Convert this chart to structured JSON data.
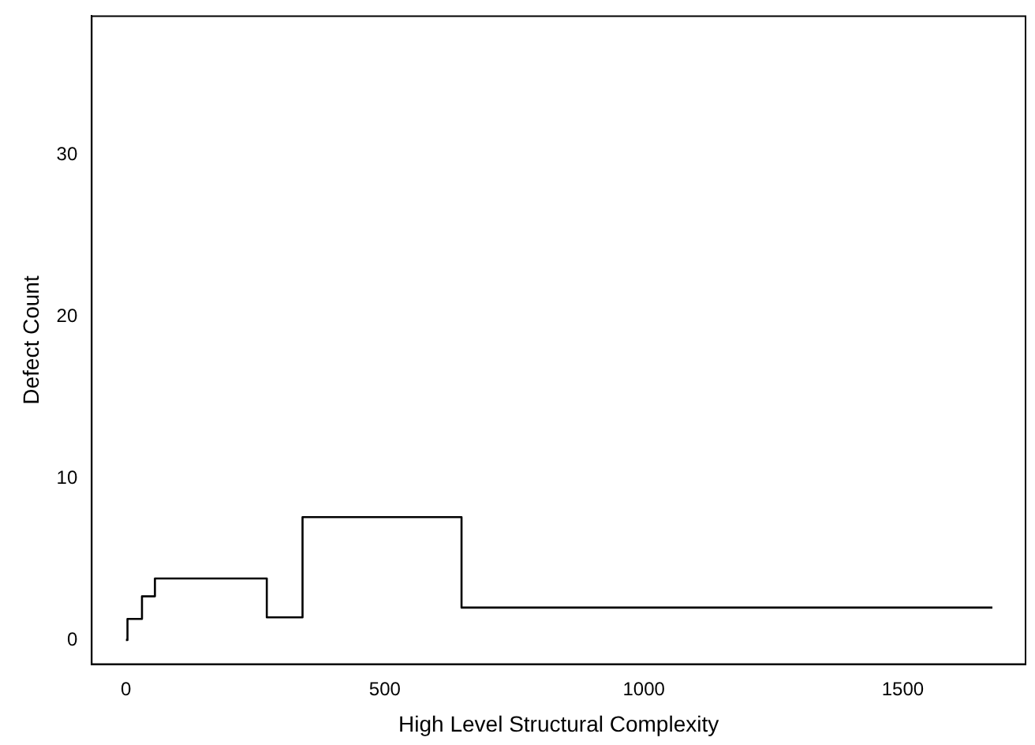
{
  "chart_data": {
    "type": "step",
    "xlabel": "High Level Structural Complexity",
    "ylabel": "Defect Count",
    "x": [
      0,
      3,
      31,
      56,
      272,
      341,
      648,
      1673
    ],
    "values": [
      0,
      1.3,
      2.7,
      3.8,
      1.4,
      7.6,
      2.0,
      2.0
    ],
    "color": "#000000",
    "xlim": [
      -66,
      1737
    ],
    "xticks": [
      0,
      500,
      1000,
      1500
    ],
    "ylim": [
      -1.5,
      38.6
    ],
    "yticks": [
      0,
      10,
      20,
      30
    ],
    "grid": false,
    "legend": false,
    "marker": "none",
    "line_style": "solid"
  }
}
